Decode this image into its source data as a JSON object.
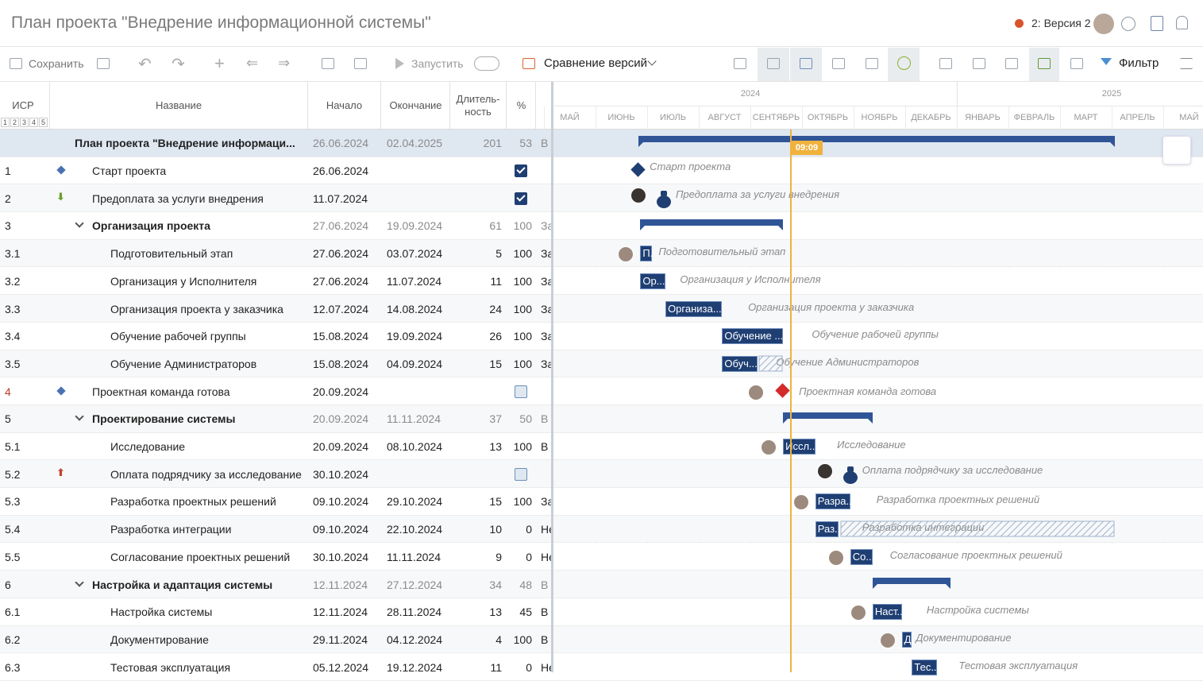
{
  "header": {
    "title": "План проекта \"Внедрение информационной системы\"",
    "version": "2: Версия 2"
  },
  "toolbar": {
    "save": "Сохранить",
    "run": "Запустить",
    "compare": "Сравнение версий",
    "filter": "Фильтр"
  },
  "table": {
    "columns": {
      "wbs": "ИСР",
      "levels": [
        "1",
        "2",
        "3",
        "4",
        "5"
      ],
      "name": "Название",
      "start": "Начало",
      "end": "Окончание",
      "duration": [
        "Длитель-",
        "ность"
      ],
      "percent": "%"
    },
    "rows": [
      {
        "kind": "summary",
        "level": 0,
        "name": "План проекта \"Внедрение информаци...",
        "start": "26.06.2024",
        "end": "02.04.2025",
        "duration": "201",
        "percent": "53",
        "status": "В"
      },
      {
        "wbs": "1",
        "kind": "milestone",
        "icon": "diamond",
        "level": 1,
        "name": "Старт проекта",
        "start": "26.06.2024",
        "done": true
      },
      {
        "wbs": "2",
        "kind": "payment",
        "icon": "arrow-down",
        "level": 1,
        "name": "Предоплата за услуги внедрения",
        "start": "11.07.2024",
        "done": true,
        "avatar": true
      },
      {
        "wbs": "3",
        "kind": "group",
        "level": 1,
        "name": "Организация проекта",
        "start": "27.06.2024",
        "end": "19.09.2024",
        "duration": "61",
        "percent": "100",
        "status": "За"
      },
      {
        "wbs": "3.1",
        "kind": "task",
        "level": 2,
        "name": "Подготовительный этап",
        "start": "27.06.2024",
        "end": "03.07.2024",
        "duration": "5",
        "percent": "100",
        "status": "За",
        "bar_label": "П.",
        "avatar": true
      },
      {
        "wbs": "3.2",
        "kind": "task",
        "level": 2,
        "name": "Организация у Исполнителя",
        "start": "27.06.2024",
        "end": "11.07.2024",
        "duration": "11",
        "percent": "100",
        "status": "За",
        "bar_label": "Ор..."
      },
      {
        "wbs": "3.3",
        "kind": "task",
        "level": 2,
        "name": "Организация проекта у заказчика",
        "start": "12.07.2024",
        "end": "14.08.2024",
        "duration": "24",
        "percent": "100",
        "status": "За",
        "bar_label": "Организа..."
      },
      {
        "wbs": "3.4",
        "kind": "task",
        "level": 2,
        "name": "Обучение рабочей группы",
        "start": "15.08.2024",
        "end": "19.09.2024",
        "duration": "26",
        "percent": "100",
        "status": "За",
        "bar_label": "Обучение ..."
      },
      {
        "wbs": "3.5",
        "kind": "task",
        "level": 2,
        "name": "Обучение Администраторов",
        "start": "15.08.2024",
        "end": "04.09.2024",
        "duration": "15",
        "percent": "100",
        "status": "За",
        "bar_label": "Обуч..."
      },
      {
        "wbs": "4",
        "kind": "milestone",
        "icon": "diamond",
        "critical": true,
        "level": 1,
        "name": "Проектная команда готова",
        "start": "20.09.2024",
        "done": false,
        "avatar": true
      },
      {
        "wbs": "5",
        "kind": "group",
        "level": 1,
        "name": "Проектирование системы",
        "start": "20.09.2024",
        "end": "11.11.2024",
        "duration": "37",
        "percent": "50",
        "status": "В"
      },
      {
        "wbs": "5.1",
        "kind": "task",
        "level": 2,
        "name": "Исследование",
        "start": "20.09.2024",
        "end": "08.10.2024",
        "duration": "13",
        "percent": "100",
        "status": "В",
        "bar_label": "Иссл...",
        "avatar": true
      },
      {
        "wbs": "5.2",
        "kind": "payment",
        "icon": "arrow-up",
        "level": 2,
        "name": "Оплата подрядчику за исследование",
        "start": "30.10.2024",
        "done": false,
        "avatar": true
      },
      {
        "wbs": "5.3",
        "kind": "task",
        "level": 2,
        "name": "Разработка проектных решений",
        "start": "09.10.2024",
        "end": "29.10.2024",
        "duration": "15",
        "percent": "100",
        "status": "За",
        "bar_label": "Разра...",
        "avatar": true
      },
      {
        "wbs": "5.4",
        "kind": "task",
        "level": 2,
        "name": "Разработка интеграции",
        "start": "09.10.2024",
        "end": "22.10.2024",
        "duration": "10",
        "percent": "0",
        "status": "Не",
        "bar_label": "Раз..."
      },
      {
        "wbs": "5.5",
        "kind": "task",
        "level": 2,
        "name": "Согласование проектных решений",
        "start": "30.10.2024",
        "end": "11.11.2024",
        "duration": "9",
        "percent": "0",
        "status": "Не",
        "bar_label": "Со...",
        "avatar": true
      },
      {
        "wbs": "6",
        "kind": "group",
        "level": 1,
        "name": "Настройка и адаптация системы",
        "start": "12.11.2024",
        "end": "27.12.2024",
        "duration": "34",
        "percent": "48",
        "status": "В"
      },
      {
        "wbs": "6.1",
        "kind": "task",
        "level": 2,
        "name": "Настройка системы",
        "start": "12.11.2024",
        "end": "28.11.2024",
        "duration": "13",
        "percent": "45",
        "status": "В",
        "bar_label": "Наст...",
        "avatar": true
      },
      {
        "wbs": "6.2",
        "kind": "task",
        "level": 2,
        "name": "Документирование",
        "start": "29.11.2024",
        "end": "04.12.2024",
        "duration": "4",
        "percent": "100",
        "status": "В",
        "bar_label": "Д",
        "avatar": true
      },
      {
        "wbs": "6.3",
        "kind": "task",
        "level": 2,
        "name": "Тестовая эксплуатация",
        "start": "05.12.2024",
        "end": "19.12.2024",
        "duration": "11",
        "percent": "0",
        "status": "Не",
        "bar_label": "Тес..."
      }
    ]
  },
  "timeline": {
    "years": [
      "2024",
      "2025"
    ],
    "months": [
      "МАЙ",
      "ИЮНЬ",
      "ИЮЛЬ",
      "АВГУСТ",
      "СЕНТЯБРЬ",
      "ОКТЯБРЬ",
      "НОЯБРЬ",
      "ДЕКАБРЬ",
      "ЯНВАРЬ",
      "ФЕВРАЛЬ",
      "МАРТ",
      "АПРЕЛЬ",
      "МАЙ"
    ],
    "today": "09:09"
  }
}
